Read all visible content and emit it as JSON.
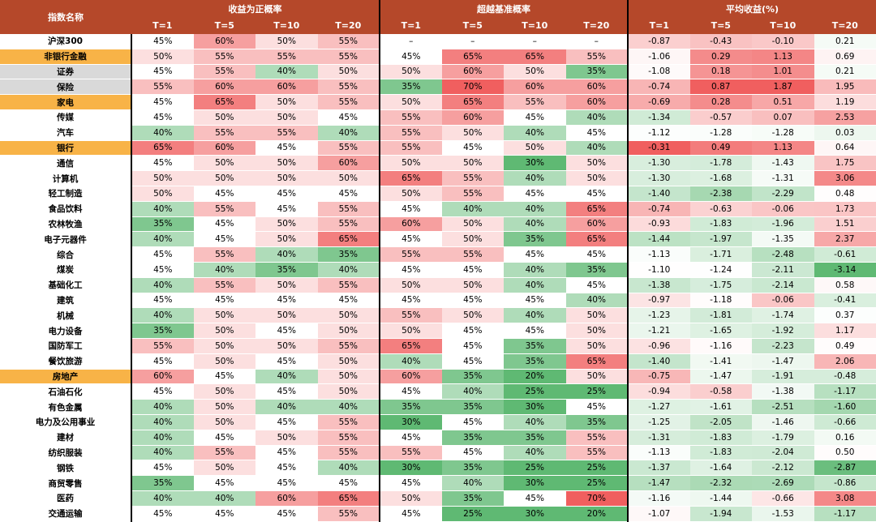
{
  "header": {
    "name_col": "指数名称",
    "groups": [
      "收益为正概率",
      "超越基准概率",
      "平均收益(%)"
    ],
    "periods": [
      "T=1",
      "T=5",
      "T=10",
      "T=20"
    ]
  },
  "rows": [
    {
      "name": "沪深300",
      "values": [
        "45%",
        "60%",
        "50%",
        "55%",
        "–",
        "–",
        "–",
        "–",
        "-0.87",
        "-0.43",
        "-0.10",
        "0.21"
      ]
    },
    {
      "name": "非银行金融",
      "highlight": "orange",
      "values": [
        "50%",
        "55%",
        "55%",
        "55%",
        "45%",
        "65%",
        "65%",
        "55%",
        "-1.06",
        "0.29",
        "1.13",
        "0.69"
      ]
    },
    {
      "name": "证券",
      "highlight": "gray",
      "values": [
        "45%",
        "55%",
        "40%",
        "50%",
        "50%",
        "60%",
        "50%",
        "35%",
        "-1.08",
        "0.18",
        "1.01",
        "0.21"
      ]
    },
    {
      "name": "保险",
      "highlight": "gray",
      "values": [
        "55%",
        "60%",
        "60%",
        "55%",
        "35%",
        "70%",
        "60%",
        "60%",
        "-0.74",
        "0.87",
        "1.87",
        "1.95"
      ]
    },
    {
      "name": "家电",
      "highlight": "orange",
      "values": [
        "45%",
        "65%",
        "50%",
        "55%",
        "50%",
        "65%",
        "55%",
        "60%",
        "-0.69",
        "0.28",
        "0.51",
        "1.19"
      ]
    },
    {
      "name": "传媒",
      "values": [
        "45%",
        "50%",
        "50%",
        "45%",
        "55%",
        "60%",
        "45%",
        "40%",
        "-1.34",
        "-0.57",
        "0.07",
        "2.53"
      ]
    },
    {
      "name": "汽车",
      "values": [
        "40%",
        "55%",
        "55%",
        "40%",
        "55%",
        "50%",
        "40%",
        "45%",
        "-1.12",
        "-1.28",
        "-1.28",
        "0.03"
      ]
    },
    {
      "name": "银行",
      "highlight": "orange",
      "values": [
        "65%",
        "60%",
        "45%",
        "55%",
        "55%",
        "45%",
        "50%",
        "40%",
        "-0.31",
        "0.49",
        "1.13",
        "0.64"
      ]
    },
    {
      "name": "通信",
      "values": [
        "45%",
        "50%",
        "50%",
        "60%",
        "50%",
        "50%",
        "30%",
        "50%",
        "-1.30",
        "-1.78",
        "-1.43",
        "1.75"
      ]
    },
    {
      "name": "计算机",
      "values": [
        "50%",
        "50%",
        "50%",
        "50%",
        "65%",
        "55%",
        "40%",
        "50%",
        "-1.30",
        "-1.68",
        "-1.31",
        "3.06"
      ]
    },
    {
      "name": "轻工制造",
      "values": [
        "50%",
        "45%",
        "45%",
        "45%",
        "50%",
        "55%",
        "45%",
        "45%",
        "-1.40",
        "-2.38",
        "-2.29",
        "0.48"
      ]
    },
    {
      "name": "食品饮料",
      "values": [
        "40%",
        "55%",
        "45%",
        "55%",
        "45%",
        "40%",
        "40%",
        "65%",
        "-0.74",
        "-0.63",
        "-0.06",
        "1.73"
      ]
    },
    {
      "name": "农林牧渔",
      "values": [
        "35%",
        "45%",
        "50%",
        "55%",
        "60%",
        "50%",
        "40%",
        "60%",
        "-0.93",
        "-1.83",
        "-1.96",
        "1.51"
      ]
    },
    {
      "name": "电子元器件",
      "values": [
        "40%",
        "45%",
        "50%",
        "65%",
        "45%",
        "50%",
        "35%",
        "65%",
        "-1.44",
        "-1.97",
        "-1.35",
        "2.37"
      ]
    },
    {
      "name": "综合",
      "values": [
        "45%",
        "55%",
        "40%",
        "35%",
        "55%",
        "55%",
        "45%",
        "45%",
        "-1.13",
        "-1.71",
        "-2.48",
        "-0.61"
      ]
    },
    {
      "name": "煤炭",
      "values": [
        "45%",
        "40%",
        "35%",
        "40%",
        "45%",
        "45%",
        "40%",
        "35%",
        "-1.10",
        "-1.24",
        "-2.11",
        "-3.14"
      ]
    },
    {
      "name": "基础化工",
      "values": [
        "40%",
        "55%",
        "50%",
        "55%",
        "50%",
        "50%",
        "40%",
        "45%",
        "-1.38",
        "-1.75",
        "-2.14",
        "0.58"
      ]
    },
    {
      "name": "建筑",
      "values": [
        "45%",
        "45%",
        "45%",
        "45%",
        "45%",
        "45%",
        "45%",
        "40%",
        "-0.97",
        "-1.18",
        "-0.06",
        "-0.41"
      ]
    },
    {
      "name": "机械",
      "values": [
        "40%",
        "50%",
        "50%",
        "50%",
        "55%",
        "50%",
        "40%",
        "50%",
        "-1.23",
        "-1.81",
        "-1.74",
        "0.37"
      ]
    },
    {
      "name": "电力设备",
      "values": [
        "35%",
        "50%",
        "45%",
        "50%",
        "50%",
        "45%",
        "45%",
        "50%",
        "-1.21",
        "-1.65",
        "-1.92",
        "1.17"
      ]
    },
    {
      "name": "国防军工",
      "values": [
        "55%",
        "50%",
        "50%",
        "55%",
        "65%",
        "45%",
        "35%",
        "50%",
        "-0.96",
        "-1.16",
        "-2.23",
        "0.49"
      ]
    },
    {
      "name": "餐饮旅游",
      "values": [
        "45%",
        "50%",
        "45%",
        "50%",
        "40%",
        "45%",
        "35%",
        "65%",
        "-1.40",
        "-1.41",
        "-1.47",
        "2.06"
      ]
    },
    {
      "name": "房地产",
      "highlight": "orange",
      "values": [
        "60%",
        "45%",
        "40%",
        "50%",
        "60%",
        "35%",
        "20%",
        "50%",
        "-0.75",
        "-1.47",
        "-1.91",
        "-0.48"
      ]
    },
    {
      "name": "石油石化",
      "values": [
        "45%",
        "50%",
        "45%",
        "50%",
        "45%",
        "40%",
        "25%",
        "25%",
        "-0.94",
        "-0.58",
        "-1.38",
        "-1.17"
      ]
    },
    {
      "name": "有色金属",
      "values": [
        "40%",
        "50%",
        "40%",
        "40%",
        "35%",
        "35%",
        "30%",
        "45%",
        "-1.27",
        "-1.61",
        "-2.51",
        "-1.60"
      ]
    },
    {
      "name": "电力及公用事业",
      "values": [
        "40%",
        "50%",
        "45%",
        "55%",
        "30%",
        "45%",
        "40%",
        "35%",
        "-1.25",
        "-2.05",
        "-1.46",
        "-0.66"
      ]
    },
    {
      "name": "建材",
      "values": [
        "40%",
        "45%",
        "50%",
        "55%",
        "45%",
        "35%",
        "35%",
        "55%",
        "-1.31",
        "-1.83",
        "-1.79",
        "0.16"
      ]
    },
    {
      "name": "纺织服装",
      "values": [
        "40%",
        "55%",
        "45%",
        "55%",
        "55%",
        "45%",
        "40%",
        "55%",
        "-1.13",
        "-1.83",
        "-2.04",
        "0.50"
      ]
    },
    {
      "name": "钢铁",
      "values": [
        "45%",
        "50%",
        "45%",
        "40%",
        "30%",
        "35%",
        "25%",
        "25%",
        "-1.37",
        "-1.64",
        "-2.12",
        "-2.87"
      ]
    },
    {
      "name": "商贸零售",
      "values": [
        "35%",
        "45%",
        "45%",
        "45%",
        "45%",
        "40%",
        "30%",
        "25%",
        "-1.47",
        "-2.32",
        "-2.69",
        "-0.86"
      ]
    },
    {
      "name": "医药",
      "values": [
        "40%",
        "40%",
        "60%",
        "65%",
        "50%",
        "35%",
        "45%",
        "70%",
        "-1.16",
        "-1.44",
        "-0.66",
        "3.08"
      ]
    },
    {
      "name": "交通运输",
      "values": [
        "45%",
        "45%",
        "45%",
        "55%",
        "45%",
        "25%",
        "30%",
        "20%",
        "-1.07",
        "-1.94",
        "-1.53",
        "-1.17"
      ]
    }
  ]
}
